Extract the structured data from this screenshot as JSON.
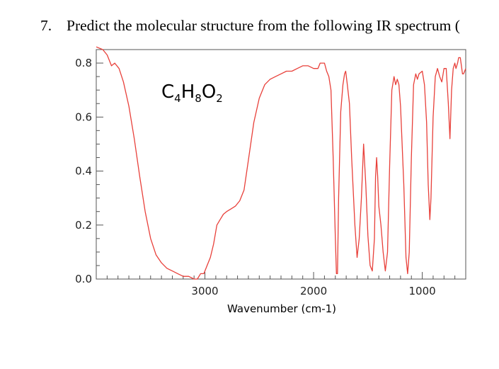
{
  "question": {
    "number": "7.",
    "text": "Predict the molecular structure from the following IR spectrum ("
  },
  "chart_data": {
    "type": "line",
    "title": "",
    "xlabel": "Wavenumber (cm-1)",
    "ylabel": "",
    "xlim": [
      4000,
      600
    ],
    "ylim": [
      0.0,
      0.85
    ],
    "x_reversed": true,
    "x_ticks": [
      3000,
      2000,
      1000
    ],
    "x_tick_labels": [
      "3000",
      "2000",
      "1000"
    ],
    "y_ticks": [
      0.0,
      0.2,
      0.4,
      0.6,
      0.8
    ],
    "y_tick_labels": [
      "0.0",
      "0.2",
      "0.4",
      "0.6",
      "0.8"
    ],
    "grid": false,
    "annotation": {
      "formula_parts": [
        {
          "symbol": "C",
          "count": "4"
        },
        {
          "symbol": "H",
          "count": "8"
        },
        {
          "symbol": "O",
          "count": "2"
        }
      ]
    },
    "series": [
      {
        "color": "#e8403a",
        "points": [
          [
            4000,
            0.86
          ],
          [
            3940,
            0.85
          ],
          [
            3900,
            0.83
          ],
          [
            3860,
            0.79
          ],
          [
            3830,
            0.8
          ],
          [
            3790,
            0.78
          ],
          [
            3750,
            0.73
          ],
          [
            3700,
            0.64
          ],
          [
            3650,
            0.52
          ],
          [
            3600,
            0.38
          ],
          [
            3550,
            0.25
          ],
          [
            3500,
            0.15
          ],
          [
            3450,
            0.09
          ],
          [
            3400,
            0.06
          ],
          [
            3350,
            0.04
          ],
          [
            3300,
            0.03
          ],
          [
            3250,
            0.02
          ],
          [
            3200,
            0.01
          ],
          [
            3150,
            0.01
          ],
          [
            3100,
            0.0
          ],
          [
            3070,
            0.0
          ],
          [
            3040,
            0.02
          ],
          [
            3010,
            0.02
          ],
          [
            2980,
            0.05
          ],
          [
            2950,
            0.08
          ],
          [
            2920,
            0.13
          ],
          [
            2890,
            0.2
          ],
          [
            2860,
            0.22
          ],
          [
            2830,
            0.24
          ],
          [
            2800,
            0.25
          ],
          [
            2760,
            0.26
          ],
          [
            2720,
            0.27
          ],
          [
            2680,
            0.29
          ],
          [
            2640,
            0.33
          ],
          [
            2600,
            0.44
          ],
          [
            2550,
            0.58
          ],
          [
            2500,
            0.67
          ],
          [
            2450,
            0.72
          ],
          [
            2400,
            0.74
          ],
          [
            2350,
            0.75
          ],
          [
            2300,
            0.76
          ],
          [
            2250,
            0.77
          ],
          [
            2200,
            0.77
          ],
          [
            2150,
            0.78
          ],
          [
            2100,
            0.79
          ],
          [
            2050,
            0.79
          ],
          [
            2000,
            0.78
          ],
          [
            1990,
            0.78
          ],
          [
            1960,
            0.78
          ],
          [
            1940,
            0.8
          ],
          [
            1900,
            0.8
          ],
          [
            1880,
            0.77
          ],
          [
            1860,
            0.75
          ],
          [
            1840,
            0.7
          ],
          [
            1820,
            0.45
          ],
          [
            1800,
            0.15
          ],
          [
            1790,
            0.02
          ],
          [
            1780,
            0.02
          ],
          [
            1770,
            0.3
          ],
          [
            1750,
            0.62
          ],
          [
            1730,
            0.72
          ],
          [
            1715,
            0.76
          ],
          [
            1705,
            0.77
          ],
          [
            1690,
            0.72
          ],
          [
            1670,
            0.65
          ],
          [
            1650,
            0.45
          ],
          [
            1620,
            0.2
          ],
          [
            1600,
            0.08
          ],
          [
            1580,
            0.15
          ],
          [
            1560,
            0.3
          ],
          [
            1540,
            0.5
          ],
          [
            1520,
            0.35
          ],
          [
            1500,
            0.16
          ],
          [
            1480,
            0.05
          ],
          [
            1460,
            0.03
          ],
          [
            1440,
            0.15
          ],
          [
            1430,
            0.38
          ],
          [
            1420,
            0.45
          ],
          [
            1410,
            0.38
          ],
          [
            1400,
            0.27
          ],
          [
            1380,
            0.2
          ],
          [
            1360,
            0.1
          ],
          [
            1340,
            0.03
          ],
          [
            1320,
            0.1
          ],
          [
            1300,
            0.42
          ],
          [
            1280,
            0.7
          ],
          [
            1260,
            0.75
          ],
          [
            1245,
            0.72
          ],
          [
            1230,
            0.74
          ],
          [
            1215,
            0.72
          ],
          [
            1200,
            0.64
          ],
          [
            1170,
            0.35
          ],
          [
            1150,
            0.08
          ],
          [
            1135,
            0.02
          ],
          [
            1120,
            0.1
          ],
          [
            1100,
            0.45
          ],
          [
            1080,
            0.72
          ],
          [
            1060,
            0.76
          ],
          [
            1045,
            0.74
          ],
          [
            1030,
            0.76
          ],
          [
            1000,
            0.77
          ],
          [
            980,
            0.72
          ],
          [
            960,
            0.58
          ],
          [
            945,
            0.35
          ],
          [
            930,
            0.22
          ],
          [
            920,
            0.3
          ],
          [
            900,
            0.6
          ],
          [
            880,
            0.75
          ],
          [
            860,
            0.78
          ],
          [
            840,
            0.75
          ],
          [
            820,
            0.73
          ],
          [
            800,
            0.78
          ],
          [
            780,
            0.78
          ],
          [
            760,
            0.65
          ],
          [
            745,
            0.52
          ],
          [
            730,
            0.7
          ],
          [
            715,
            0.78
          ],
          [
            700,
            0.8
          ],
          [
            690,
            0.78
          ],
          [
            675,
            0.8
          ],
          [
            665,
            0.82
          ],
          [
            650,
            0.82
          ],
          [
            640,
            0.79
          ],
          [
            630,
            0.76
          ],
          [
            620,
            0.76
          ],
          [
            610,
            0.77
          ],
          [
            600,
            0.78
          ]
        ]
      }
    ]
  }
}
